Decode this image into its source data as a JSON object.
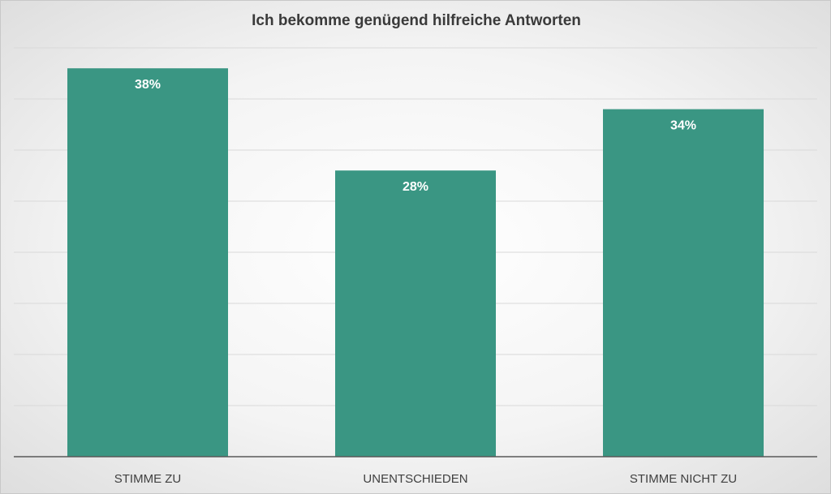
{
  "chart_data": {
    "type": "bar",
    "title": "Ich bekomme genügend hilfreiche Antworten",
    "categories": [
      "STIMME ZU",
      "UNENTSCHIEDEN",
      "STIMME NICHT ZU"
    ],
    "values": [
      38,
      28,
      34
    ],
    "data_labels": [
      "38%",
      "28%",
      "34%"
    ],
    "ylim": [
      0,
      40
    ],
    "grid": true,
    "bar_color": "#3a9683",
    "label_color": "#ffffff"
  }
}
